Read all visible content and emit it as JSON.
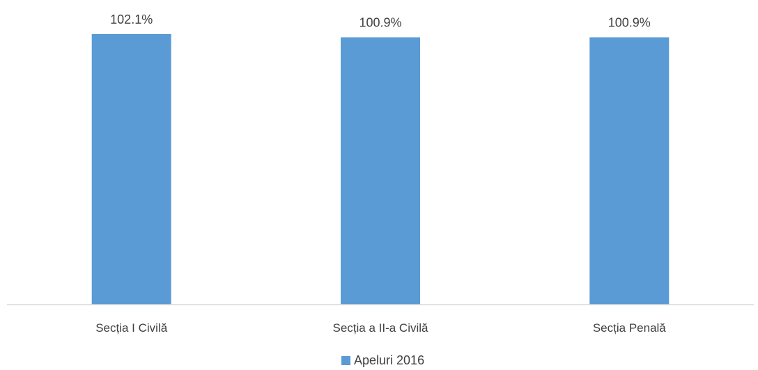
{
  "chart_data": {
    "type": "bar",
    "categories": [
      "Secția I Civilă",
      "Secția a II-a Civilă",
      "Secția Penală"
    ],
    "series": [
      {
        "name": "Apeluri 2016",
        "values": [
          102.1,
          100.9,
          100.9
        ],
        "labels": [
          "102.1%",
          "100.9%",
          "100.9%"
        ],
        "color": "#5b9bd5"
      }
    ],
    "ylim": [
      0,
      102.1
    ],
    "grid": false,
    "legend": "bottom-center",
    "axis_color": "#d9d9d9"
  }
}
